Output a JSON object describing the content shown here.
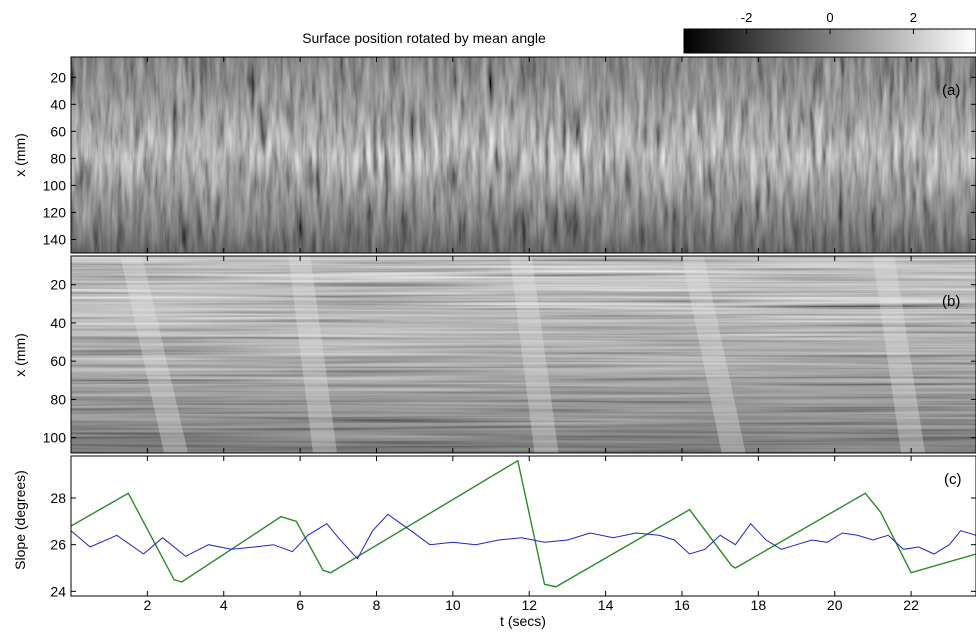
{
  "title": "Surface position rotated by mean angle",
  "colorbar": {
    "ticks": [
      "-2",
      "0",
      "2"
    ],
    "range": [
      -3.5,
      3.5
    ],
    "colormap": "grayscale"
  },
  "chart_data": [
    {
      "type": "heatmap",
      "panel_label": "(a)",
      "ylabel": "x (mm)",
      "yticks": [
        "20",
        "40",
        "60",
        "80",
        "100",
        "120",
        "140"
      ],
      "ylim": [
        5,
        150
      ],
      "xlim": [
        0,
        23.7
      ],
      "grid": false
    },
    {
      "type": "heatmap",
      "panel_label": "(b)",
      "ylabel": "x (mm)",
      "yticks": [
        "20",
        "40",
        "60",
        "80",
        "100"
      ],
      "ylim": [
        5,
        108
      ],
      "xlim": [
        0,
        23.7
      ],
      "grid": false
    },
    {
      "type": "line",
      "panel_label": "(c)",
      "ylabel": "Slope (degrees)",
      "xlabel": "t (secs)",
      "yticks": [
        "24",
        "26",
        "28"
      ],
      "xticks": [
        "2",
        "4",
        "6",
        "8",
        "10",
        "12",
        "14",
        "16",
        "18",
        "20",
        "22"
      ],
      "ylim": [
        23.8,
        29.8
      ],
      "xlim": [
        0,
        23.7
      ],
      "grid": false,
      "series": [
        {
          "color": "#2a8a2a",
          "x": [
            0.0,
            1.5,
            2.7,
            2.9,
            5.5,
            5.9,
            6.6,
            6.8,
            11.7,
            12.4,
            12.7,
            16.2,
            17.3,
            17.4,
            20.8,
            21.2,
            22.0,
            23.7
          ],
          "y": [
            26.8,
            28.2,
            24.5,
            24.4,
            27.2,
            27.0,
            24.9,
            24.8,
            29.6,
            24.3,
            24.2,
            27.5,
            25.1,
            25.0,
            28.2,
            27.4,
            24.8,
            25.6
          ]
        },
        {
          "color": "#2323c8",
          "x": [
            0.0,
            0.5,
            1.2,
            1.9,
            2.4,
            3.0,
            3.6,
            4.2,
            4.8,
            5.3,
            5.8,
            6.2,
            6.7,
            7.0,
            7.5,
            7.9,
            8.3,
            8.9,
            9.4,
            10.0,
            10.6,
            11.2,
            11.8,
            12.4,
            13.0,
            13.6,
            14.2,
            14.8,
            15.4,
            15.8,
            16.2,
            16.6,
            17.0,
            17.4,
            17.8,
            18.2,
            18.6,
            19.0,
            19.4,
            19.8,
            20.2,
            20.6,
            21.0,
            21.4,
            21.8,
            22.2,
            22.6,
            23.0,
            23.3,
            23.7
          ],
          "y": [
            26.6,
            25.9,
            26.4,
            25.6,
            26.3,
            25.5,
            26.0,
            25.8,
            25.9,
            26.0,
            25.7,
            26.4,
            26.9,
            26.3,
            25.4,
            26.6,
            27.3,
            26.6,
            26.0,
            26.1,
            26.0,
            26.2,
            26.3,
            26.1,
            26.2,
            26.5,
            26.3,
            26.5,
            26.4,
            26.2,
            25.6,
            25.8,
            26.4,
            26.0,
            26.9,
            26.2,
            25.8,
            26.0,
            26.2,
            26.1,
            26.5,
            26.4,
            26.2,
            26.4,
            25.8,
            25.9,
            25.6,
            26.0,
            26.6,
            26.4
          ]
        }
      ]
    }
  ]
}
